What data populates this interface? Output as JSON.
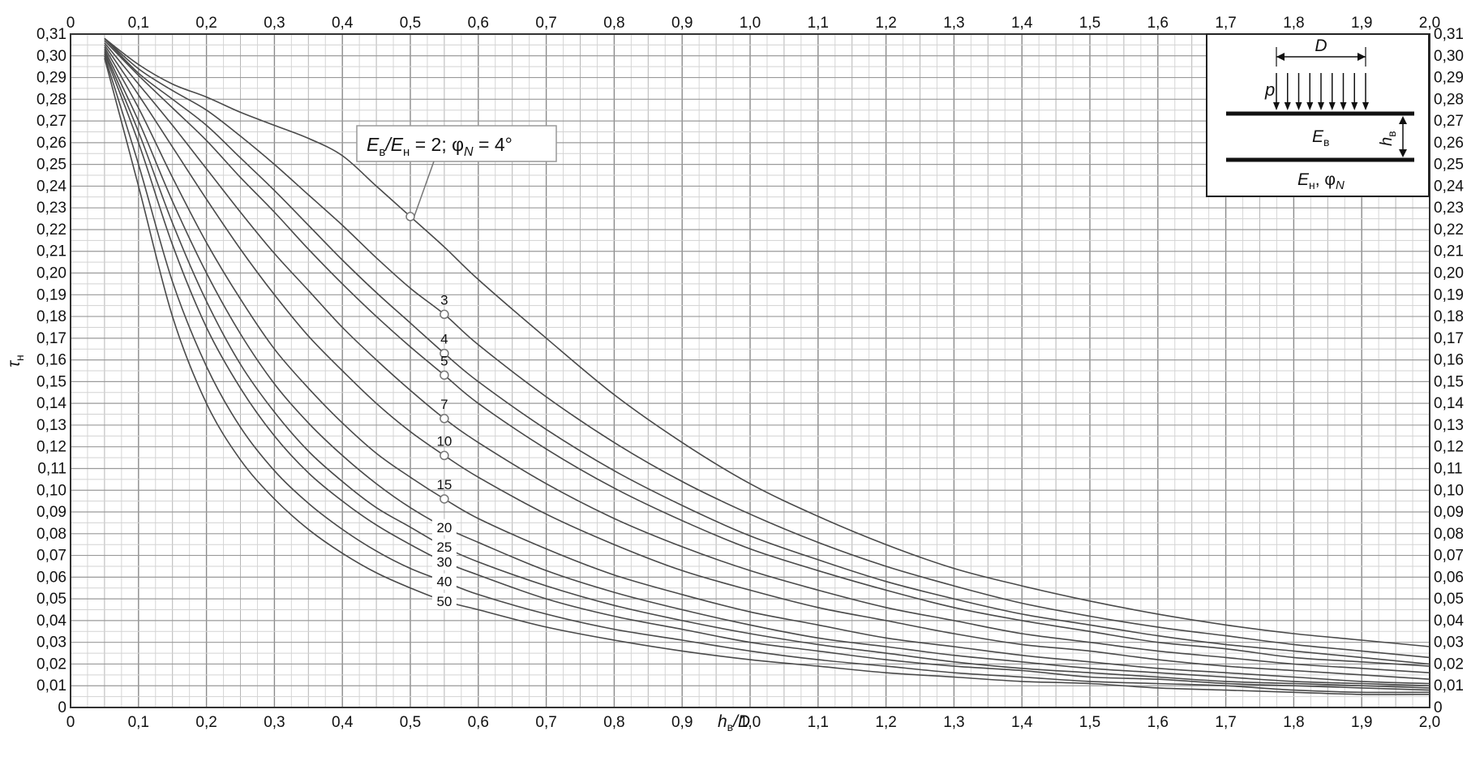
{
  "chart_data": {
    "type": "line",
    "xlabel_main": "h",
    "xlabel_sub": "в",
    "xlabel_tail": "/D",
    "ylabel_main": "τ",
    "ylabel_sub": "н",
    "xlim": [
      0,
      2.0
    ],
    "ylim": [
      0,
      0.31
    ],
    "grid": true,
    "x_ticks": [
      "0",
      "0,1",
      "0,2",
      "0,3",
      "0,4",
      "0,5",
      "0,6",
      "0,7",
      "0,8",
      "0,9",
      "1,0",
      "1,1",
      "1,2",
      "1,3",
      "1,4",
      "1,5",
      "1,6",
      "1,7",
      "1,8",
      "1,9",
      "2,0"
    ],
    "y_ticks": [
      "0",
      "0,01",
      "0,02",
      "0,03",
      "0,04",
      "0,05",
      "0,06",
      "0,07",
      "0,08",
      "0,09",
      "0,10",
      "0,11",
      "0,12",
      "0,13",
      "0,14",
      "0,15",
      "0,16",
      "0,17",
      "0,18",
      "0,19",
      "0,20",
      "0,21",
      "0,22",
      "0,23",
      "0,24",
      "0,25",
      "0,26",
      "0,27",
      "0,28",
      "0,29",
      "0,30",
      "0,31"
    ],
    "x": [
      0.05,
      0.1,
      0.15,
      0.2,
      0.25,
      0.3,
      0.35,
      0.4,
      0.45,
      0.5,
      0.55,
      0.6,
      0.7,
      0.8,
      0.9,
      1.0,
      1.1,
      1.2,
      1.3,
      1.4,
      1.5,
      1.6,
      1.7,
      1.8,
      1.9,
      2.0
    ],
    "series": [
      {
        "label": "2",
        "values": [
          0.308,
          0.296,
          0.287,
          0.281,
          0.274,
          0.268,
          0.262,
          0.254,
          0.24,
          0.226,
          0.212,
          0.197,
          0.17,
          0.144,
          0.122,
          0.103,
          0.088,
          0.075,
          0.064,
          0.056,
          0.049,
          0.043,
          0.038,
          0.034,
          0.031,
          0.028
        ]
      },
      {
        "label": "3",
        "values": [
          0.308,
          0.294,
          0.284,
          0.275,
          0.263,
          0.25,
          0.236,
          0.222,
          0.207,
          0.193,
          0.181,
          0.167,
          0.143,
          0.122,
          0.104,
          0.089,
          0.076,
          0.065,
          0.056,
          0.048,
          0.042,
          0.037,
          0.033,
          0.029,
          0.026,
          0.023
        ]
      },
      {
        "label": "4",
        "values": [
          0.308,
          0.292,
          0.28,
          0.268,
          0.253,
          0.238,
          0.222,
          0.206,
          0.191,
          0.177,
          0.163,
          0.15,
          0.128,
          0.109,
          0.093,
          0.079,
          0.068,
          0.058,
          0.05,
          0.043,
          0.038,
          0.033,
          0.029,
          0.026,
          0.023,
          0.02
        ]
      },
      {
        "label": "5",
        "values": [
          0.307,
          0.291,
          0.276,
          0.261,
          0.244,
          0.228,
          0.211,
          0.195,
          0.18,
          0.166,
          0.153,
          0.14,
          0.119,
          0.101,
          0.086,
          0.073,
          0.063,
          0.054,
          0.046,
          0.04,
          0.035,
          0.03,
          0.027,
          0.023,
          0.021,
          0.019
        ]
      },
      {
        "label": "7",
        "values": [
          0.306,
          0.287,
          0.268,
          0.248,
          0.228,
          0.209,
          0.192,
          0.175,
          0.16,
          0.146,
          0.133,
          0.122,
          0.103,
          0.087,
          0.074,
          0.063,
          0.054,
          0.046,
          0.04,
          0.034,
          0.03,
          0.026,
          0.023,
          0.02,
          0.018,
          0.016
        ]
      },
      {
        "label": "10",
        "values": [
          0.305,
          0.282,
          0.258,
          0.234,
          0.211,
          0.19,
          0.171,
          0.155,
          0.14,
          0.127,
          0.116,
          0.106,
          0.089,
          0.075,
          0.063,
          0.054,
          0.046,
          0.04,
          0.034,
          0.029,
          0.026,
          0.022,
          0.019,
          0.017,
          0.015,
          0.013
        ]
      },
      {
        "label": "15",
        "values": [
          0.304,
          0.276,
          0.244,
          0.214,
          0.188,
          0.165,
          0.147,
          0.131,
          0.117,
          0.106,
          0.096,
          0.087,
          0.073,
          0.061,
          0.052,
          0.044,
          0.038,
          0.032,
          0.028,
          0.024,
          0.021,
          0.018,
          0.016,
          0.014,
          0.012,
          0.011
        ]
      },
      {
        "label": "20",
        "values": [
          0.303,
          0.27,
          0.233,
          0.2,
          0.172,
          0.149,
          0.131,
          0.116,
          0.103,
          0.092,
          0.083,
          0.076,
          0.063,
          0.053,
          0.045,
          0.038,
          0.032,
          0.028,
          0.024,
          0.021,
          0.018,
          0.016,
          0.014,
          0.012,
          0.011,
          0.01
        ]
      },
      {
        "label": "25",
        "values": [
          0.302,
          0.265,
          0.223,
          0.187,
          0.158,
          0.136,
          0.118,
          0.104,
          0.092,
          0.083,
          0.074,
          0.067,
          0.056,
          0.047,
          0.04,
          0.034,
          0.029,
          0.025,
          0.021,
          0.018,
          0.016,
          0.014,
          0.012,
          0.011,
          0.01,
          0.009
        ]
      },
      {
        "label": "30",
        "values": [
          0.301,
          0.26,
          0.213,
          0.175,
          0.147,
          0.125,
          0.108,
          0.095,
          0.084,
          0.075,
          0.067,
          0.061,
          0.05,
          0.042,
          0.036,
          0.03,
          0.026,
          0.022,
          0.019,
          0.017,
          0.014,
          0.013,
          0.011,
          0.01,
          0.009,
          0.008
        ]
      },
      {
        "label": "40",
        "values": [
          0.3,
          0.25,
          0.196,
          0.157,
          0.129,
          0.109,
          0.094,
          0.082,
          0.072,
          0.064,
          0.058,
          0.052,
          0.043,
          0.036,
          0.031,
          0.026,
          0.022,
          0.019,
          0.016,
          0.014,
          0.012,
          0.011,
          0.01,
          0.008,
          0.007,
          0.007
        ]
      },
      {
        "label": "50",
        "values": [
          0.299,
          0.24,
          0.18,
          0.14,
          0.114,
          0.096,
          0.082,
          0.071,
          0.062,
          0.055,
          0.049,
          0.045,
          0.037,
          0.031,
          0.026,
          0.022,
          0.019,
          0.016,
          0.014,
          0.012,
          0.011,
          0.009,
          0.008,
          0.007,
          0.006,
          0.006
        ]
      }
    ],
    "annotation": {
      "ratio_label": "E",
      "ratio_sub1": "в",
      "ratio_slash": "/E",
      "ratio_sub2": "н",
      "ratio_eq": " = 2; φ",
      "ratio_phi_sub": "N",
      "ratio_tail": " = 4°"
    },
    "curve_labels": [
      "3",
      "4",
      "5",
      "7",
      "10",
      "15",
      "20",
      "25",
      "30",
      "40",
      "50"
    ]
  },
  "inset": {
    "D": "D",
    "p": "p",
    "E_top": "E",
    "E_top_sub": "в",
    "h": "h",
    "h_sub": "в",
    "E_bot": "E",
    "E_bot_sub": "н",
    "E_bot_tail": ", φ",
    "E_bot_phi_sub": "N"
  }
}
